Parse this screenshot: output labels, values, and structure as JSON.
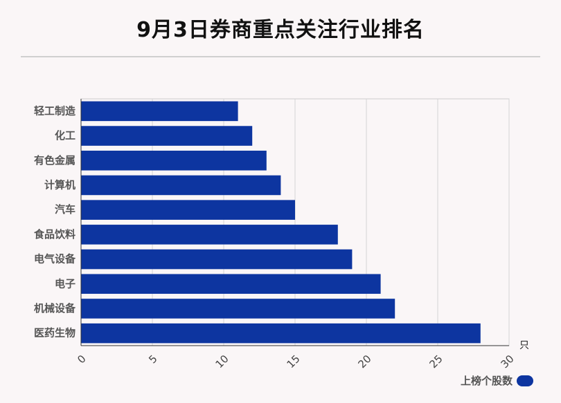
{
  "title": "9月3日券商重点关注行业排名",
  "chart_data": {
    "type": "bar",
    "orientation": "horizontal",
    "title": "9月3日券商重点关注行业排名",
    "categories": [
      "轻工制造",
      "化工",
      "有色金属",
      "计算机",
      "汽车",
      "食品饮料",
      "电气设备",
      "电子",
      "机械设备",
      "医药生物"
    ],
    "series": [
      {
        "name": "上榜个股数",
        "values": [
          11,
          12,
          13,
          14,
          15,
          18,
          19,
          21,
          22,
          28
        ]
      }
    ],
    "xlim": [
      0,
      30
    ],
    "x_ticks": [
      "0",
      "5",
      "10",
      "15",
      "20",
      "25",
      "30"
    ],
    "x_unit": "只",
    "grid": true,
    "legend": "bottom-right",
    "bar_color": "#0d35a0"
  }
}
